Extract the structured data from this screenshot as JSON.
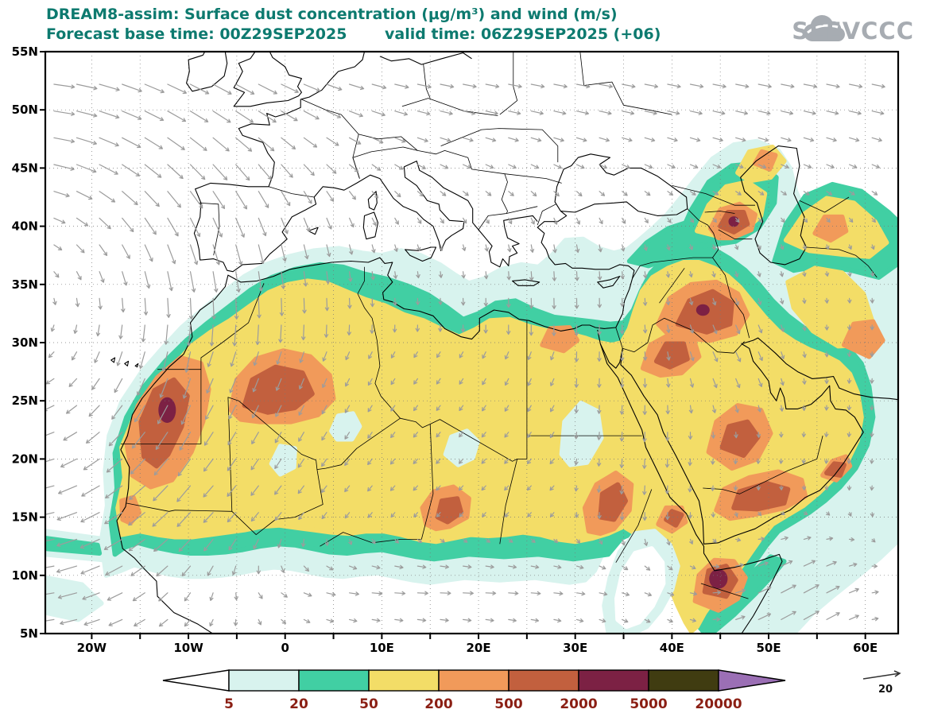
{
  "header": {
    "title": "DREAM8-assim: Surface dust concentration (μg/m³) and wind (m/s)",
    "forecast_base_time": "Forecast base time: 00Z29SEP2025",
    "valid_time": "valid time: 06Z29SEP2025 (+06)",
    "title_color": "#0d7a6f"
  },
  "logo": {
    "text": "SEEVCCC",
    "color": "#a7acb2"
  },
  "axes": {
    "lat_labels": [
      "55N",
      "50N",
      "45N",
      "40N",
      "35N",
      "30N",
      "25N",
      "20N",
      "15N",
      "10N",
      "5N"
    ],
    "lon_labels": [
      "20W",
      "10W",
      "0",
      "10E",
      "20E",
      "30E",
      "40E",
      "50E",
      "60E"
    ]
  },
  "legend": {
    "values": [
      "5",
      "20",
      "50",
      "200",
      "500",
      "2000",
      "5000",
      "20000"
    ],
    "colors": [
      "#ffffff",
      "#d8f3ee",
      "#41cfa3",
      "#f3dd67",
      "#f19a5a",
      "#c2603e",
      "#7c2144",
      "#403c11",
      "#9b6fb5"
    ],
    "label_color": "#8b1f14"
  },
  "wind_reference": {
    "label": "20"
  },
  "map": {
    "dust_levels_ug_m3": [
      5,
      20,
      50,
      200,
      500,
      2000,
      5000,
      20000
    ],
    "wind_color": "#9c9c9c"
  }
}
